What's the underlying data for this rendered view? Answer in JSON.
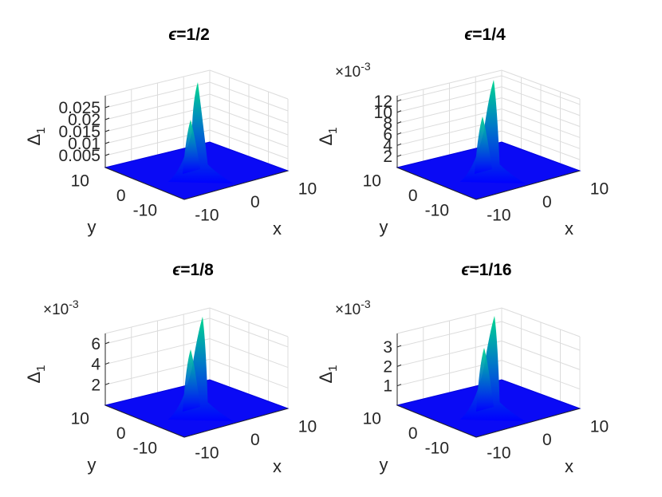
{
  "chart_data": [
    {
      "type": "surface",
      "title_var": "ϵ",
      "title_val": "=1/2",
      "zlabel": "Δ",
      "zlabel_sub": "1",
      "xlabel": "x",
      "ylabel": "y",
      "xticks": [
        "-10",
        "0",
        "10"
      ],
      "yticks": [
        "-10",
        "0",
        "10"
      ],
      "zticks": [
        "0.005",
        "0.01",
        "0.015",
        "0.02",
        "0.025"
      ],
      "zmultiplier": "",
      "zlim": [
        0,
        0.03
      ],
      "peak": 0.0235,
      "colormap": [
        "#0000ff",
        "#00d48a"
      ],
      "grid": true
    },
    {
      "type": "surface",
      "title_var": "ϵ",
      "title_val": "=1/4",
      "zlabel": "Δ",
      "zlabel_sub": "1",
      "xlabel": "x",
      "ylabel": "y",
      "xticks": [
        "-10",
        "0",
        "10"
      ],
      "yticks": [
        "-10",
        "0",
        "10"
      ],
      "zticks": [
        "2",
        "4",
        "6",
        "8",
        "10",
        "12"
      ],
      "zmultiplier": "×10",
      "zmultiplier_exp": "-3",
      "zlim": [
        0,
        13
      ],
      "peak": 10.5,
      "colormap": [
        "#0000ff",
        "#00d48a"
      ],
      "grid": true
    },
    {
      "type": "surface",
      "title_var": "ϵ",
      "title_val": "=1/8",
      "zlabel": "Δ",
      "zlabel_sub": "1",
      "xlabel": "x",
      "ylabel": "y",
      "xticks": [
        "-10",
        "0",
        "10"
      ],
      "yticks": [
        "-10",
        "0",
        "10"
      ],
      "zticks": [
        "2",
        "4",
        "6"
      ],
      "zmultiplier": "×10",
      "zmultiplier_exp": "-3",
      "zlim": [
        0,
        7
      ],
      "peak": 5.5,
      "colormap": [
        "#0000ff",
        "#00d48a"
      ],
      "grid": true
    },
    {
      "type": "surface",
      "title_var": "ϵ",
      "title_val": "=1/16",
      "zlabel": "Δ",
      "zlabel_sub": "1",
      "xlabel": "x",
      "ylabel": "y",
      "xticks": [
        "-10",
        "0",
        "10"
      ],
      "yticks": [
        "-10",
        "0",
        "10"
      ],
      "zticks": [
        "1",
        "2",
        "3"
      ],
      "zmultiplier": "×10",
      "zmultiplier_exp": "-3",
      "zlim": [
        0,
        3.7
      ],
      "peak": 3.0,
      "colormap": [
        "#0000ff",
        "#00d48a"
      ],
      "grid": true
    }
  ]
}
